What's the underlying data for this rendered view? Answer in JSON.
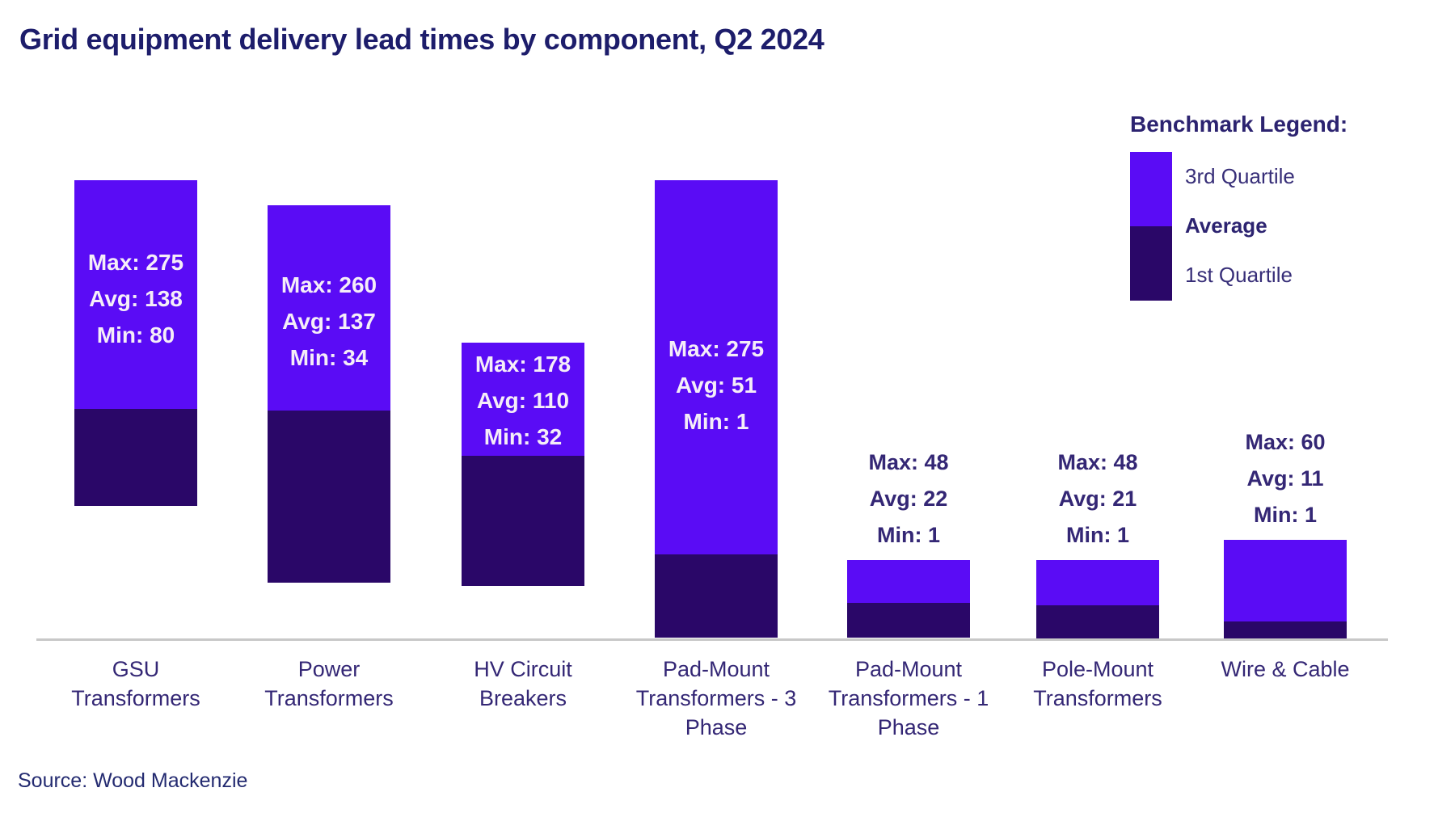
{
  "chart_data": {
    "type": "bar",
    "subtype": "floating-range-stacked-columns",
    "title": "Grid equipment delivery lead times by component, Q2 2024",
    "source": "Source: Wood Mackenzie",
    "xlabel": "",
    "ylabel": "",
    "ylim": [
      0,
      305
    ],
    "grid": false,
    "legend": {
      "title": "Benchmark Legend:",
      "position": "top-right",
      "entries": [
        {
          "label": "3rd Quartile",
          "swatch": "third_quartile"
        },
        {
          "label": "Average",
          "swatch": "boundary"
        },
        {
          "label": "1st Quartile",
          "swatch": "first_quartile"
        }
      ]
    },
    "value_label_prefixes": {
      "max": "Max",
      "avg": "Avg",
      "min": "Min"
    },
    "categories": [
      "GSU Transformers",
      "Power Transformers",
      "HV Circuit Breakers",
      "Pad-Mount Transformers - 3 Phase",
      "Pad-Mount Transformers - 1 Phase",
      "Pole-Mount Transformers",
      "Wire & Cable"
    ],
    "bars": [
      {
        "category": "GSU Transformers",
        "category_lines": [
          "GSU",
          "Transformers"
        ],
        "max": 275,
        "avg": 138,
        "min": 80,
        "value_labels": "inside"
      },
      {
        "category": "Power Transformers",
        "category_lines": [
          "Power",
          "Transformers"
        ],
        "max": 260,
        "avg": 137,
        "min": 34,
        "value_labels": "inside"
      },
      {
        "category": "HV Circuit Breakers",
        "category_lines": [
          "HV Circuit",
          "Breakers"
        ],
        "max": 178,
        "avg": 110,
        "min": 32,
        "value_labels": "inside"
      },
      {
        "category": "Pad-Mount Transformers - 3 Phase",
        "category_lines": [
          "Pad-Mount",
          "Transformers - 3",
          "Phase"
        ],
        "max": 275,
        "avg": 51,
        "min": 1,
        "value_labels": "inside"
      },
      {
        "category": "Pad-Mount Transformers - 1 Phase",
        "category_lines": [
          "Pad-Mount",
          "Transformers - 1",
          "Phase"
        ],
        "max": 48,
        "avg": 22,
        "min": 1,
        "value_labels": "above"
      },
      {
        "category": "Pole-Mount Transformers",
        "category_lines": [
          "Pole-Mount",
          "Transformers"
        ],
        "max": 48,
        "avg": 21,
        "min": 1,
        "value_labels": "above"
      },
      {
        "category": "Wire & Cable",
        "category_lines": [
          "Wire & Cable"
        ],
        "max": 60,
        "avg": 11,
        "min": 1,
        "value_labels": "above"
      }
    ],
    "colors": {
      "third_quartile": "#5a0cf5",
      "first_quartile": "#2a0768",
      "title_text": "#1d1d6b",
      "label_text": "#342775",
      "inside_label_text": "#f5edf8",
      "axis_line": "#c8c8c8",
      "background": "#ffffff"
    }
  }
}
